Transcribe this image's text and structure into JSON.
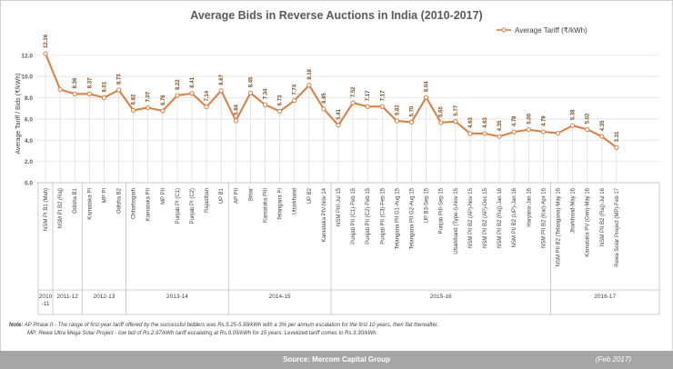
{
  "chart_data": {
    "type": "line",
    "title": "Average Bids in Reverse Auctions in India (2010-2017)",
    "xlabel": "",
    "ylabel": "Average Tariff / Bids (₹/kWh)",
    "ylim": [
      0,
      14
    ],
    "yticks": [
      "0.0",
      "2.0",
      "4.0",
      "6.0",
      "8.0",
      "10.0",
      "12.0"
    ],
    "ytick_values": [
      0,
      2,
      4,
      6,
      8,
      10,
      12
    ],
    "grid": true,
    "legend": "top-right",
    "series": [
      {
        "name": "Average Tariff (₹/kWh)",
        "color": "#e07b39",
        "values": [
          12.16,
          8.79,
          8.36,
          8.37,
          8.01,
          8.73,
          6.82,
          7.07,
          6.76,
          8.22,
          8.41,
          7.14,
          8.67,
          5.84,
          8.45,
          7.34,
          6.73,
          7.74,
          9.18,
          6.95,
          5.41,
          7.52,
          7.17,
          7.17,
          5.82,
          5.7,
          8.04,
          5.65,
          5.77,
          4.63,
          4.63,
          4.35,
          4.78,
          5.0,
          4.79,
          4.67,
          5.38,
          5.02,
          4.35,
          3.31
        ]
      }
    ],
    "data_labels": [
      "12.16",
      "",
      "8.36",
      "8.37",
      "8.01",
      "8.73",
      "6.82",
      "7.07",
      "6.76",
      "8.22",
      "8.41",
      "7.14",
      "8.67",
      "5.84",
      "8.45",
      "7.34",
      "6.73",
      "7.74",
      "9.18",
      "6.95",
      "5.41",
      "7.52",
      "7.17",
      "7.17",
      "5.82",
      "5.70",
      "8.04",
      "5.65",
      "5.77",
      "4.63",
      "4.63",
      "4.35",
      "4.78",
      "5.00",
      "4.79",
      "",
      "5.38",
      "5.02",
      "4.35",
      "3.31"
    ],
    "categories": [
      "NSM PI B1 (Mah)",
      "NSM PI B2 (Raj)",
      "Odisha B1",
      "Karnataka PI",
      "MP PI",
      "Odisha B2",
      "Chhattisgarh",
      "Karnataka PII",
      "MP PII",
      "Punjab PI (C1)",
      "Punjab PI (C2)",
      "Rajasthan",
      "UP B1",
      "AP PII",
      "Bihar",
      "Karnataka PIII",
      "Telangana PI",
      "Uttarkhand",
      "UP B2",
      "Karnataka PIV-Nov 14",
      "NSM PIII-Jul 15",
      "Punjab PII (C1)-Feb 15",
      "Punjab PII (C2)-Feb 15",
      "Punjab PII (C3)-Feb 15",
      "Telangana PII G1-Aug 15",
      "Telangana PII G2-Aug 15",
      "UP B3-Sep 15",
      "Punjab PIII-Sep 15",
      "Uttarkhand (Type-I)-Nov 15",
      "NSM PII B2 (AP)-Nov 15",
      "NSM PII B2 (AP)-Dec 15",
      "NSM PII B2 (Raj)-Jan 16",
      "NSM PII B2 (UP)-Jan 16",
      "Haryana-Jan 16",
      "NSM PII B2 (Kar)-Apr 16",
      "NSM PII B2 (Telangana)-May 16",
      "Jharkhand-May 16",
      "Karnataka PV (Gen)-May 16",
      "NSM PII B2 (Raj)-Jul 16",
      "Rewa Solar Project (MP)-Feb 17"
    ],
    "year_groups": [
      {
        "label": "2010-11",
        "start": 0,
        "end": 0
      },
      {
        "label": "2011-12",
        "start": 1,
        "end": 2
      },
      {
        "label": "2012-13",
        "start": 3,
        "end": 5
      },
      {
        "label": "2013-14",
        "start": 6,
        "end": 12
      },
      {
        "label": "2014-15",
        "start": 13,
        "end": 19
      },
      {
        "label": "2015-16",
        "start": 20,
        "end": 34
      },
      {
        "label": "2016-17",
        "start": 35,
        "end": 39
      }
    ]
  },
  "notes": {
    "line1_prefix": "Note:",
    "line1": " AP Phase II - The range of first-year tariff offered by the successful bidders was Rs.5.25-5.99/kWh with a 3% per annum escalation for the first 10 years, then flat thereafter.",
    "line2": "MP: Rewa Ultra Mega Solar Project - low bid of Rs.2.97/kWh tariff escalating at Rs.0.05/kWh for 15 years. Levelized tariff comes to Rs.3.30/kWh."
  },
  "footer": {
    "source": "Source: Mercom Capital Group",
    "date": "(Feb 2017)"
  }
}
